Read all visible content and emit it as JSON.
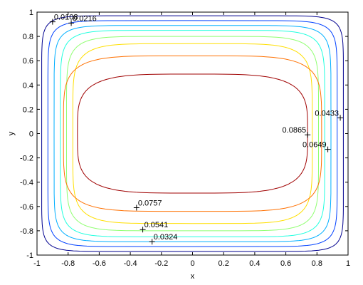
{
  "chart_data": {
    "type": "contour",
    "xlabel": "x",
    "ylabel": "y",
    "xlim": [
      -1,
      1
    ],
    "ylim": [
      -1,
      1
    ],
    "grid": false,
    "legend": "none",
    "xticks": [
      "-1",
      "-0.8",
      "-0.6",
      "-0.4",
      "-0.2",
      "0",
      "0.2",
      "0.4",
      "0.6",
      "0.8",
      "1"
    ],
    "yticks": [
      "-1",
      "-0.8",
      "-0.6",
      "-0.4",
      "-0.2",
      "0",
      "0.2",
      "0.4",
      "0.6",
      "0.8",
      "1"
    ],
    "levels": [
      {
        "value": 0.0108,
        "label": "0.0108",
        "color": "#00008f",
        "shape": {
          "a": 0.97,
          "b": 0.97,
          "p": 12
        },
        "label_at": [
          -0.9,
          0.92
        ]
      },
      {
        "value": 0.0216,
        "label": "0.0216",
        "color": "#0040ff",
        "shape": {
          "a": 0.93,
          "b": 0.93,
          "p": 10
        },
        "label_at": [
          -0.78,
          0.91
        ]
      },
      {
        "value": 0.0324,
        "label": "0.0324",
        "color": "#00afff",
        "shape": {
          "a": 0.89,
          "b": 0.89,
          "p": 9
        },
        "label_at": [
          -0.26,
          -0.89
        ]
      },
      {
        "value": 0.0433,
        "label": "0.0433",
        "color": "#20ffdf",
        "shape": {
          "a": 0.85,
          "b": 0.85,
          "p": 8
        },
        "label_at": [
          0.95,
          0.13
        ]
      },
      {
        "value": 0.0541,
        "label": "0.0541",
        "color": "#8fff70",
        "shape": {
          "a": 0.81,
          "b": 0.8,
          "p": 7
        },
        "label_at": [
          -0.32,
          -0.79
        ]
      },
      {
        "value": 0.0649,
        "label": "0.0649",
        "color": "#ffdf00",
        "shape": {
          "a": 0.77,
          "b": 0.74,
          "p": 6
        },
        "label_at": [
          0.87,
          -0.13
        ]
      },
      {
        "value": 0.0757,
        "label": "0.0757",
        "color": "#ff7000",
        "shape": {
          "a": 0.83,
          "b": 0.64,
          "p": 5
        },
        "label_at": [
          -0.36,
          -0.61
        ]
      },
      {
        "value": 0.0865,
        "label": "0.0865",
        "color": "#9f0000",
        "shape": {
          "a": 0.74,
          "b": 0.49,
          "p": 4
        },
        "label_at": [
          0.74,
          -0.01
        ]
      }
    ]
  }
}
